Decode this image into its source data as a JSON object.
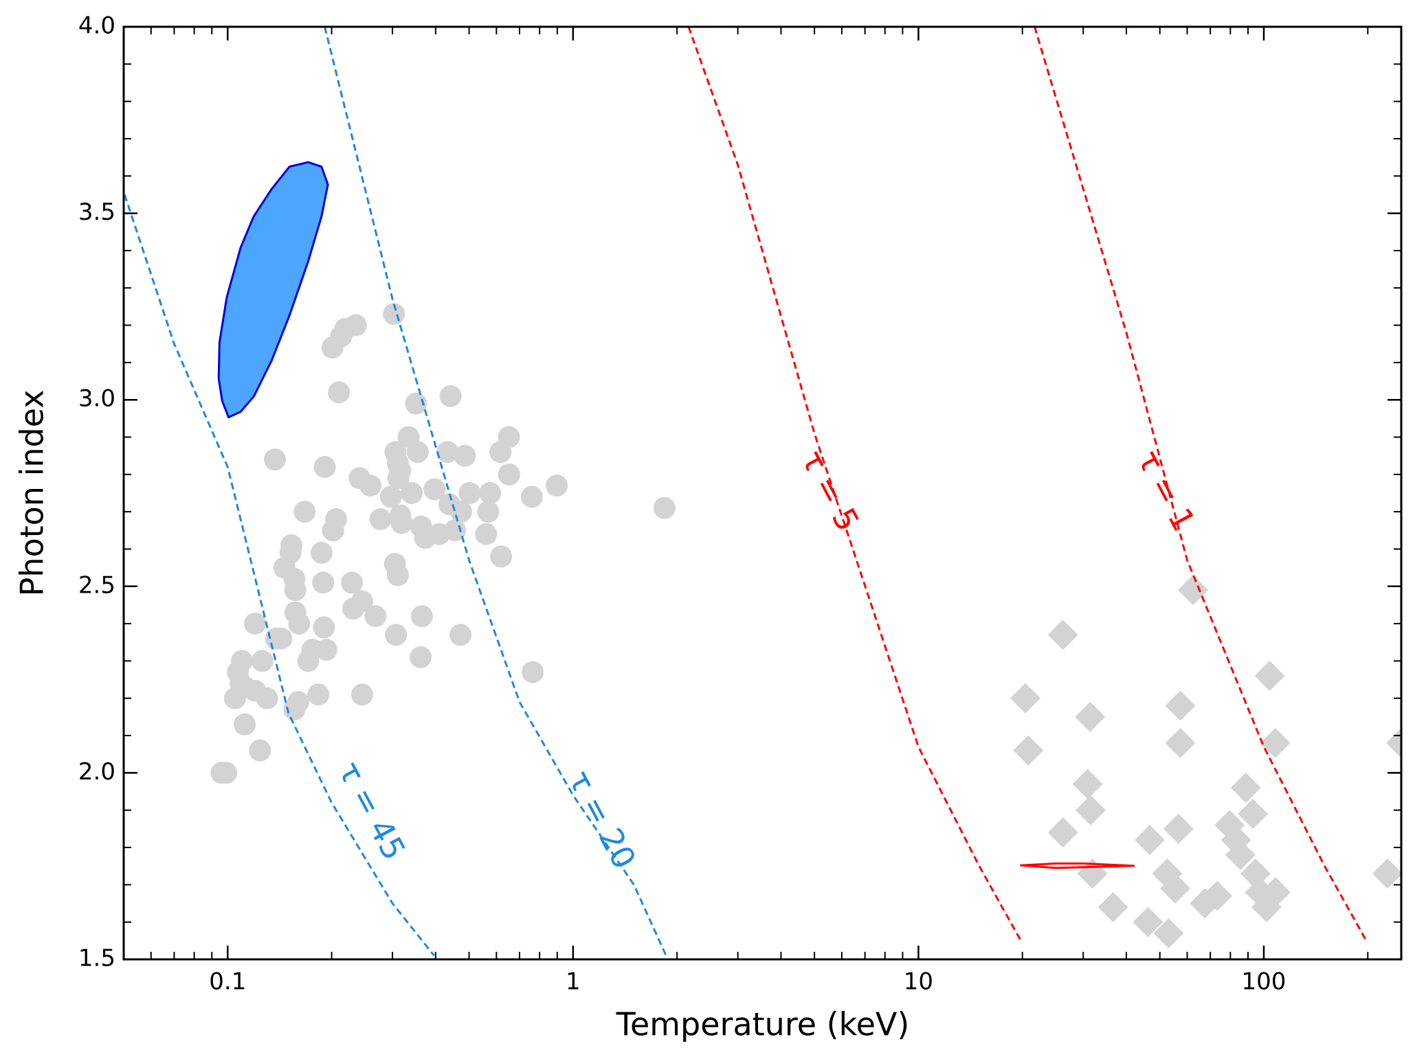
{
  "chart_data": {
    "type": "scatter",
    "xlabel": "Temperature (keV)",
    "ylabel": "Photon index",
    "xscale": "log",
    "xlim": [
      0.05,
      250
    ],
    "ylim": [
      1.5,
      4.0
    ],
    "xticks": [
      0.1,
      1,
      10,
      100
    ],
    "xminorticks": [
      0.05,
      0.06,
      0.07,
      0.08,
      0.09,
      0.2,
      0.3,
      0.4,
      0.5,
      0.6,
      0.7,
      0.8,
      0.9,
      2,
      3,
      4,
      5,
      6,
      7,
      8,
      9,
      20,
      30,
      40,
      50,
      60,
      70,
      80,
      90,
      200
    ],
    "yticks": [
      1.5,
      {
        "value": 2,
        "label": "2.0"
      },
      2.5,
      {
        "value": 3,
        "label": "3.0"
      },
      3.5,
      {
        "value": 4,
        "label": "4.0"
      }
    ],
    "yminorticks": [
      1.6,
      1.7,
      1.8,
      1.9,
      2.1,
      2.2,
      2.3,
      2.4,
      2.6,
      2.7,
      2.8,
      2.9,
      3.1,
      3.2,
      3.3,
      3.4,
      3.6,
      3.7,
      3.8,
      3.9
    ],
    "series": [
      {
        "type": "scatter",
        "marker": "circle",
        "color": "#d3d3d3",
        "x": [
          0.096,
          0.099,
          0.124,
          0.112,
          0.105,
          0.109,
          0.107,
          0.11,
          0.126,
          0.12,
          0.13,
          0.12,
          0.112,
          0.138,
          0.143,
          0.156,
          0.16,
          0.183,
          0.171,
          0.176,
          0.193,
          0.19,
          0.161,
          0.157,
          0.157,
          0.156,
          0.146,
          0.152,
          0.153,
          0.187,
          0.189,
          0.167,
          0.202,
          0.206,
          0.191,
          0.137,
          0.21,
          0.201,
          0.213,
          0.219,
          0.235,
          0.303,
          0.229,
          0.231,
          0.245,
          0.245,
          0.241,
          0.259,
          0.268,
          0.277,
          0.297,
          0.306,
          0.311,
          0.312,
          0.316,
          0.319,
          0.305,
          0.307,
          0.311,
          0.316,
          0.334,
          0.341,
          0.351,
          0.355,
          0.362,
          0.365,
          0.373,
          0.363,
          0.397,
          0.41,
          0.433,
          0.442,
          0.439,
          0.455,
          0.472,
          0.474,
          0.486,
          0.502,
          0.56,
          0.568,
          0.575,
          0.619,
          0.616,
          0.652,
          0.653,
          0.76,
          0.764,
          0.897,
          1.84
        ],
        "y": [
          2.0,
          2.0,
          2.06,
          2.13,
          2.2,
          2.24,
          2.27,
          2.3,
          2.3,
          2.4,
          2.2,
          2.22,
          2.23,
          2.36,
          2.36,
          2.17,
          2.19,
          2.21,
          2.3,
          2.33,
          2.33,
          2.39,
          2.4,
          2.43,
          2.49,
          2.52,
          2.55,
          2.59,
          2.61,
          2.59,
          2.51,
          2.7,
          2.65,
          2.68,
          2.82,
          2.84,
          3.02,
          3.14,
          3.17,
          3.19,
          3.2,
          3.23,
          2.51,
          2.44,
          2.46,
          2.21,
          2.79,
          2.77,
          2.42,
          2.68,
          2.74,
          2.86,
          2.83,
          2.79,
          2.81,
          2.67,
          2.56,
          2.37,
          2.53,
          2.69,
          2.9,
          2.75,
          2.99,
          2.86,
          2.31,
          2.42,
          2.63,
          2.66,
          2.76,
          2.64,
          2.86,
          3.01,
          2.72,
          2.65,
          2.37,
          2.7,
          2.85,
          2.75,
          2.64,
          2.7,
          2.75,
          2.58,
          2.86,
          2.9,
          2.8,
          2.74,
          2.27,
          2.77,
          2.71
        ]
      },
      {
        "type": "scatter",
        "marker": "diamond",
        "color": "#d3d3d3",
        "x": [
          20.4,
          20.8,
          26.2,
          26.2,
          31.4,
          30.9,
          31.5,
          31.9,
          36.6,
          46.2,
          46.7,
          52.5,
          53.0,
          55.4,
          56.6,
          57.3,
          57.3,
          62.4,
          67.5,
          73.3,
          79.6,
          83.1,
          85.5,
          88.7,
          93.0,
          94.6,
          97.5,
          101.8,
          104,
          108,
          108,
          228,
          250
        ],
        "y": [
          2.2,
          2.06,
          2.37,
          1.84,
          2.15,
          1.97,
          1.9,
          1.73,
          1.64,
          1.6,
          1.82,
          1.73,
          1.57,
          1.69,
          1.85,
          2.18,
          2.08,
          2.49,
          1.65,
          1.67,
          1.86,
          1.82,
          1.78,
          1.96,
          1.89,
          1.73,
          1.68,
          1.64,
          2.26,
          2.08,
          1.68,
          1.73,
          2.08
        ]
      },
      {
        "type": "line",
        "dashed": true,
        "color": "#1e88e5",
        "x": [
          0.0503,
          0.07,
          0.1,
          0.15,
          0.2,
          0.3,
          0.396
        ],
        "y": [
          3.55,
          3.15,
          2.82,
          2.16,
          1.92,
          1.65,
          1.51
        ]
      },
      {
        "type": "line",
        "dashed": true,
        "color": "#1e88e5",
        "x": [
          0.191,
          0.3,
          0.5,
          0.7,
          1.0,
          1.5,
          1.86
        ],
        "y": [
          4.0,
          3.27,
          2.57,
          2.19,
          1.94,
          1.7,
          1.51
        ]
      },
      {
        "type": "line",
        "dashed": true,
        "color": "#ff0000",
        "x": [
          2.16,
          3,
          5,
          10,
          15,
          19.8
        ],
        "y": [
          4.0,
          3.63,
          2.91,
          2.07,
          1.75,
          1.55
        ]
      },
      {
        "type": "line",
        "dashed": true,
        "color": "#ff0000",
        "x": [
          21.7,
          40,
          60,
          100,
          150,
          198
        ],
        "y": [
          4.0,
          3.18,
          2.57,
          2.07,
          1.75,
          1.55
        ]
      },
      {
        "type": "area",
        "color": "#4da6ff",
        "edgecolor": "#0000dd",
        "x": [
          0.1006,
          0.109,
          0.119,
          0.134,
          0.151,
          0.171,
          0.187,
          0.195,
          0.187,
          0.171,
          0.151,
          0.134,
          0.119,
          0.109,
          0.0994,
          0.0947,
          0.0942,
          0.0964
        ],
        "y": [
          2.953,
          2.968,
          3.009,
          3.105,
          3.226,
          3.371,
          3.492,
          3.577,
          3.625,
          3.637,
          3.625,
          3.565,
          3.492,
          3.408,
          3.275,
          3.154,
          3.057,
          2.997
        ]
      },
      {
        "type": "area",
        "color": "none",
        "edgecolor": "#ff0000",
        "x": [
          19.8,
          25,
          30,
          42,
          30,
          25
        ],
        "y": [
          1.752,
          1.757,
          1.757,
          1.751,
          1.747,
          1.745
        ]
      }
    ],
    "annotations": [
      {
        "text": "τ = 45",
        "color": "#1e88e5"
      },
      {
        "text": "τ = 20",
        "color": "#1e88e5"
      },
      {
        "text": "τ = 5",
        "color": "#ff0000"
      },
      {
        "text": "τ = 1",
        "color": "#ff0000"
      }
    ]
  }
}
